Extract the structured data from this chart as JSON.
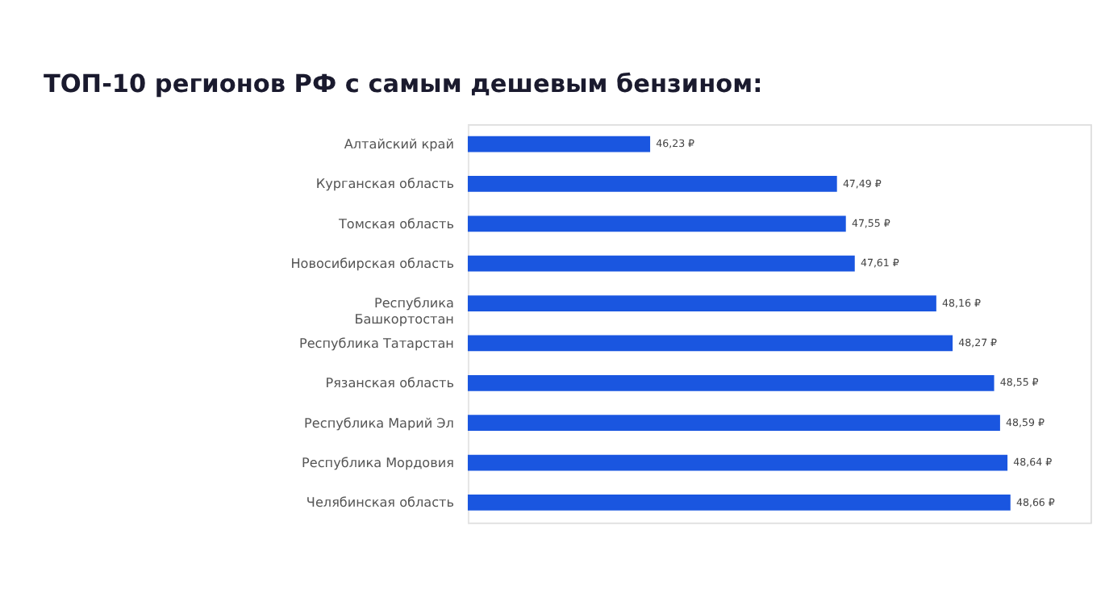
{
  "chart_data": {
    "type": "bar",
    "orientation": "horizontal",
    "title": "ТОП-10 регионов РФ с самым дешевым бензином:",
    "categories": [
      "Алтайский край",
      "Курганская область",
      "Томская область",
      "Новосибирская область",
      "Республика Башкортостан",
      "Республика Татарстан",
      "Рязанская область",
      "Республика Марий Эл",
      "Республика Мордовия",
      "Челябинская область"
    ],
    "values": [
      46.23,
      47.49,
      47.55,
      47.61,
      48.16,
      48.27,
      48.55,
      48.59,
      48.64,
      48.66
    ],
    "value_labels": [
      "46,23 ₽",
      "47,49 ₽",
      "47,55 ₽",
      "47,61 ₽",
      "48,16 ₽",
      "48,27 ₽",
      "48,55 ₽",
      "48,59 ₽",
      "48,64 ₽",
      "48,66 ₽"
    ],
    "color": "#1a56e0",
    "xlim": [
      45,
      49.2
    ],
    "tick_labels": "y"
  }
}
